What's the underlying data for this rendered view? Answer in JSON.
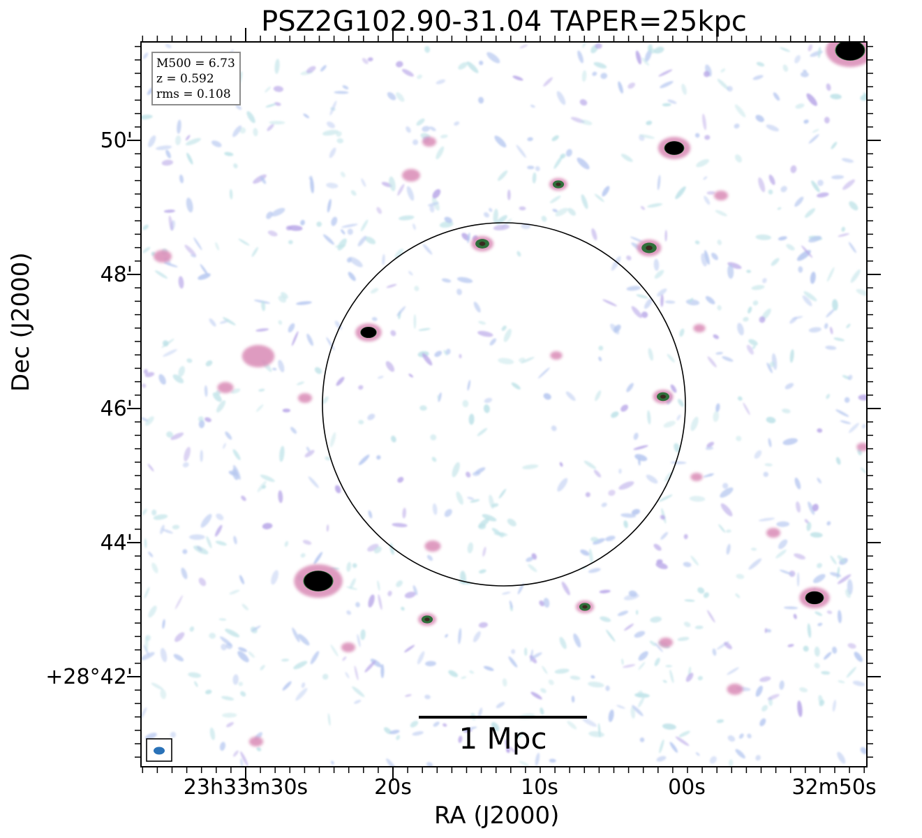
{
  "title": "PSZ2G102.90-31.04 TAPER=25kpc",
  "info": {
    "m500": "M500 = 6.73",
    "z": "z = 0.592",
    "rms": "rms = 0.108"
  },
  "axes": {
    "xlabel": "RA (J2000)",
    "ylabel": "Dec (J2000)",
    "xticks": [
      "23h33m30s",
      "20s",
      "10s",
      "00s",
      "32m50s"
    ],
    "yticks": [
      "50'",
      "48'",
      "46'",
      "44'",
      "+28°42'"
    ]
  },
  "scalebar": {
    "label": "1 Mpc"
  },
  "colors": {
    "noise_blue": "#b7c8f0",
    "noise_cyan": "#bfe3e8",
    "noise_purple": "#b9a8e8",
    "source_pink": "#d98ab5",
    "source_green": "#2f6f3a",
    "source_core": "#000000",
    "beam": "#2a72b8"
  },
  "icons": [
    "beam-ellipse-icon"
  ]
}
